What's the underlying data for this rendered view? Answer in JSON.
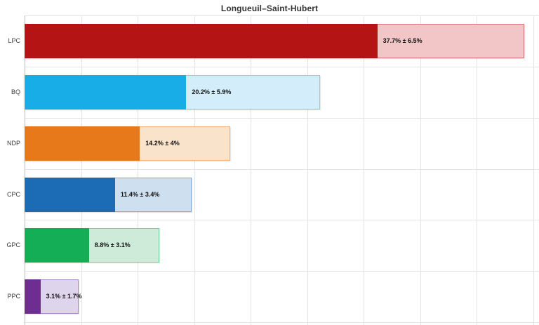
{
  "chart_data": {
    "type": "bar",
    "orientation": "horizontal",
    "title": "Longueuil–Saint-Hubert",
    "categories": [
      "LPC",
      "BQ",
      "NDP",
      "CPC",
      "GPC",
      "PPC"
    ],
    "series": [
      {
        "name": "vote share %",
        "values": [
          37.7,
          20.2,
          14.2,
          11.4,
          8.8,
          3.1
        ]
      },
      {
        "name": "margin of error %",
        "values": [
          6.5,
          5.9,
          4.0,
          3.4,
          3.1,
          1.7
        ]
      }
    ],
    "bar_labels": [
      "37.7% ± 6.5%",
      "20.2% ± 5.9%",
      "14.2% ± 4%",
      "11.4% ± 3.4%",
      "8.8% ± 3.1%",
      "3.1% ± 1.7%"
    ],
    "colors": [
      "#B41414",
      "#19ADE8",
      "#E8791A",
      "#1B6CB4",
      "#14AE57",
      "#6E2D91"
    ],
    "light_colors": [
      "#F2C6C7",
      "#D3EEFA",
      "#FAE3CB",
      "#CEDFF0",
      "#CDEBD8",
      "#DED4EB"
    ],
    "xlabel": "",
    "ylabel": "",
    "xlim": [
      0,
      45.5
    ],
    "grid_step_pct": 5,
    "grid": "on",
    "legend": "none",
    "notes": "Solid bar spans 0 to (value − MOE); pale bar extends to (value + MOE); label shows value ± MOE."
  }
}
